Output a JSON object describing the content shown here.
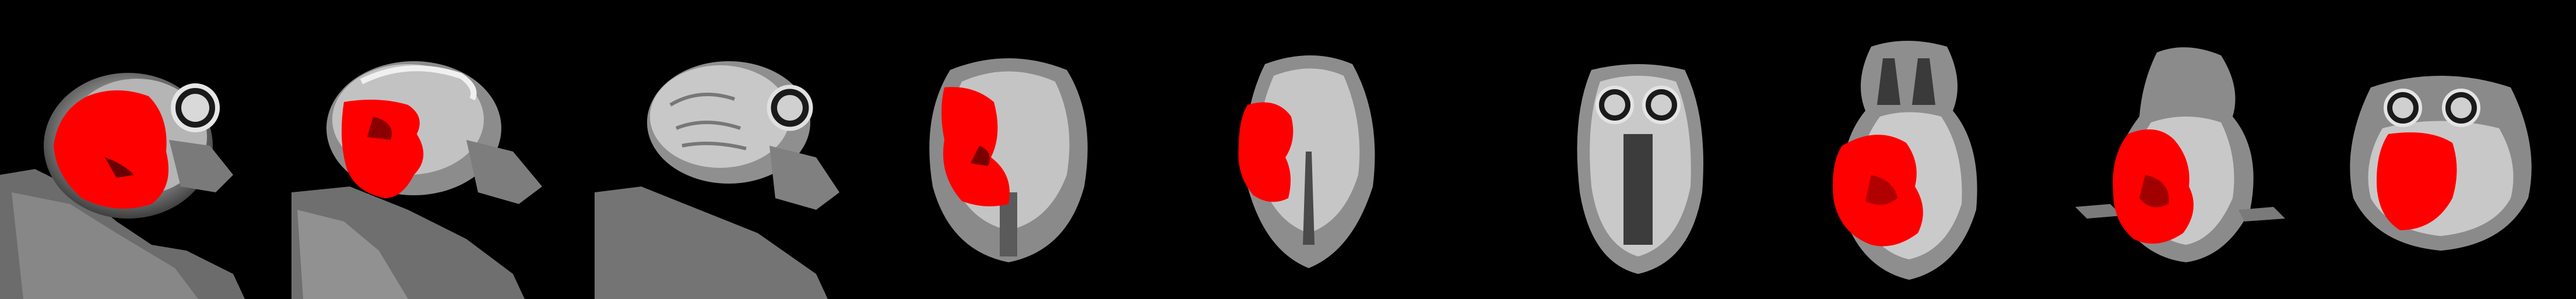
{
  "figure": {
    "description_label": "",
    "background_color": "#000000",
    "overlay_color": "#ff0000",
    "tissue_color": "#bdbdbd",
    "panels": [
      {
        "id": "sagittal-1",
        "view": "sagittal",
        "has_overlay": true
      },
      {
        "id": "sagittal-2",
        "view": "sagittal",
        "has_overlay": true
      },
      {
        "id": "sagittal-3",
        "view": "sagittal",
        "has_overlay": false
      },
      {
        "id": "coronal-1",
        "view": "coronal",
        "has_overlay": true
      },
      {
        "id": "coronal-2",
        "view": "coronal",
        "has_overlay": true
      },
      {
        "id": "coronal-3",
        "view": "coronal",
        "has_overlay": false
      },
      {
        "id": "axial-1",
        "view": "axial",
        "has_overlay": true
      },
      {
        "id": "axial-2",
        "view": "axial",
        "has_overlay": true
      },
      {
        "id": "axial-3",
        "view": "axial",
        "has_overlay": true
      }
    ]
  }
}
